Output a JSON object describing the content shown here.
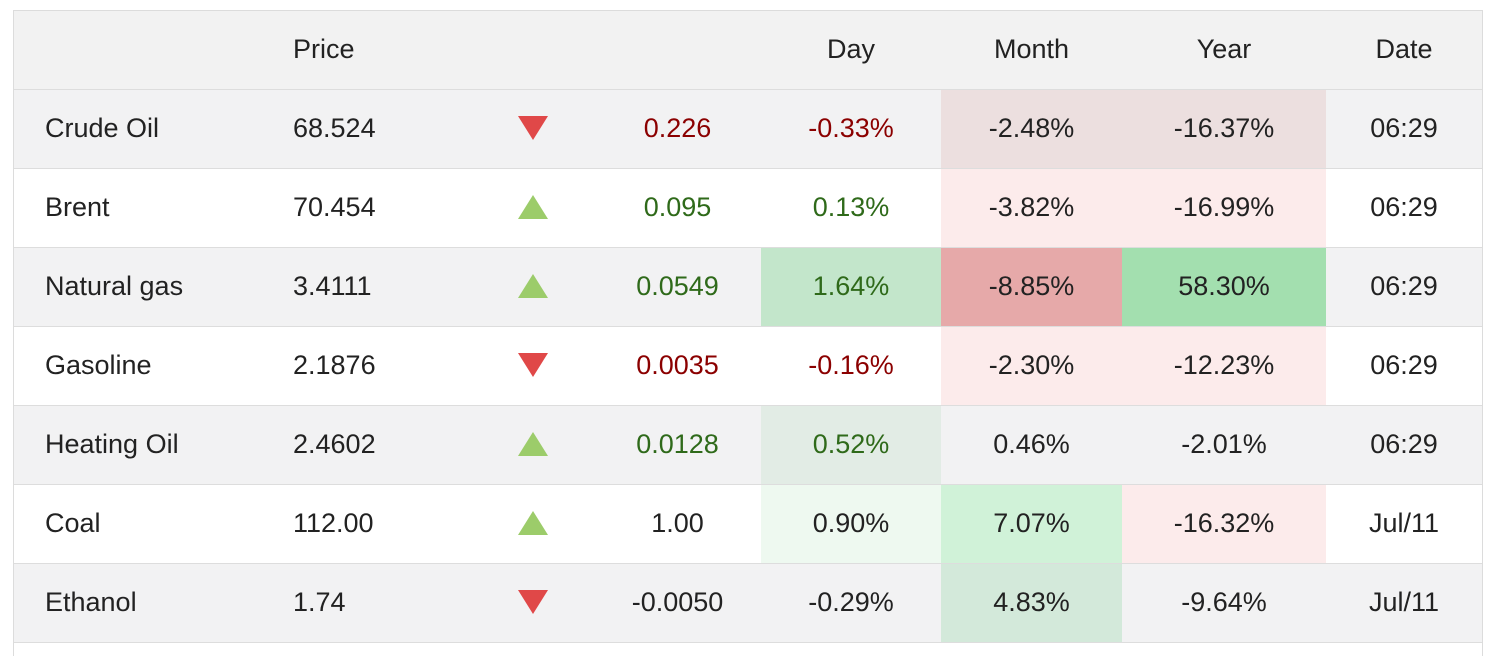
{
  "header": {
    "name": "",
    "price": "Price",
    "direction": "",
    "change": "",
    "day": "Day",
    "month": "Month",
    "year": "Year",
    "date": "Date"
  },
  "colors": {
    "up_arrow": "#9ccc6a",
    "down_arrow": "#e04848",
    "negative_text": "#8b0000",
    "positive_text": "#2f6a1a"
  },
  "rows": [
    {
      "name": "Crude Oil",
      "price": "68.524",
      "direction": "down",
      "change": "0.226",
      "day": "-0.33%",
      "month": "-2.48%",
      "year": "-16.37%",
      "date": "06:29",
      "change_color": "neg",
      "day_color": "neg",
      "day_bg": "",
      "month_bg": "#ecdfdf",
      "year_bg": "#ecdfdf"
    },
    {
      "name": "Brent",
      "price": "70.454",
      "direction": "up",
      "change": "0.095",
      "day": "0.13%",
      "month": "-3.82%",
      "year": "-16.99%",
      "date": "06:29",
      "change_color": "pos",
      "day_color": "pos",
      "day_bg": "",
      "month_bg": "#fcebeb",
      "year_bg": "#fcebeb"
    },
    {
      "name": "Natural gas",
      "price": "3.4111",
      "direction": "up",
      "change": "0.0549",
      "day": "1.64%",
      "month": "-8.85%",
      "year": "58.30%",
      "date": "06:29",
      "change_color": "pos",
      "day_color": "pos",
      "day_bg": "#c3e6cb",
      "month_bg": "#e6a9a9",
      "year_bg": "#a3dfaf"
    },
    {
      "name": "Gasoline",
      "price": "2.1876",
      "direction": "down",
      "change": "0.0035",
      "day": "-0.16%",
      "month": "-2.30%",
      "year": "-12.23%",
      "date": "06:29",
      "change_color": "neg",
      "day_color": "neg",
      "day_bg": "",
      "month_bg": "#fcebeb",
      "year_bg": "#fcebeb"
    },
    {
      "name": "Heating Oil",
      "price": "2.4602",
      "direction": "up",
      "change": "0.0128",
      "day": "0.52%",
      "month": "0.46%",
      "year": "-2.01%",
      "date": "06:29",
      "change_color": "pos",
      "day_color": "pos",
      "day_bg": "#e2ece5",
      "month_bg": "",
      "year_bg": ""
    },
    {
      "name": "Coal",
      "price": "112.00",
      "direction": "up",
      "change": "1.00",
      "day": "0.90%",
      "month": "7.07%",
      "year": "-16.32%",
      "date": "Jul/11",
      "change_color": "",
      "day_color": "",
      "day_bg": "#eef9f0",
      "month_bg": "#d0f2d8",
      "year_bg": "#fcebeb"
    },
    {
      "name": "Ethanol",
      "price": "1.74",
      "direction": "down",
      "change": "-0.0050",
      "day": "-0.29%",
      "month": "4.83%",
      "year": "-9.64%",
      "date": "Jul/11",
      "change_color": "",
      "day_color": "",
      "day_bg": "",
      "month_bg": "#d3e9da",
      "year_bg": ""
    }
  ]
}
